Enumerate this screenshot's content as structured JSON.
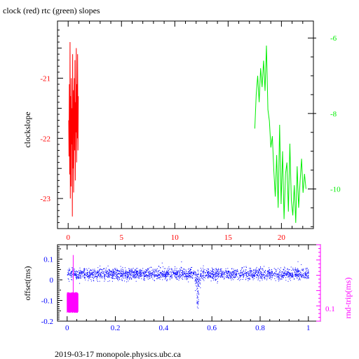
{
  "colors": {
    "clock": "#ff0000",
    "rtc": "#00ee00",
    "offset": "#0000ff",
    "rndtrip": "#ff00ff",
    "frame": "#000000"
  },
  "chart_data": [
    {
      "type": "line",
      "title": "clock (red) rtc (green) slopes",
      "xlabel": "",
      "ylabel": "clockslope",
      "xlim": [
        -1,
        23
      ],
      "ylim": [
        -23.5,
        -20.05
      ],
      "x_ticks": [
        "0",
        "5",
        "10",
        "15",
        "20"
      ],
      "y_ticks": [
        "-21",
        "-22",
        "-23"
      ],
      "right_axis": {
        "ylim": [
          -11.05,
          -5.55
        ],
        "ticks": [
          "-6",
          "-8",
          "-10"
        ],
        "label": ""
      },
      "series": [
        {
          "name": "clock",
          "axis": "left",
          "x_range": [
            0.05,
            0.95
          ],
          "values": [
            -21.7,
            -22.3,
            -21.1,
            -22.6,
            -20.4,
            -23.0,
            -21.3,
            -22.8,
            -21.0,
            -22.1,
            -21.5,
            -23.3,
            -20.6,
            -22.5,
            -21.2,
            -22.9,
            -21.6,
            -21.0,
            -22.2,
            -20.7,
            -22.7,
            -21.4,
            -21.9,
            -20.5,
            -22.4,
            -21.1,
            -22.0,
            -20.6,
            -22.2,
            -21.3
          ]
        },
        {
          "name": "rtc",
          "axis": "right",
          "x_range": [
            17.5,
            22.3
          ],
          "values": [
            -8.4,
            -7.5,
            -7.0,
            -7.7,
            -6.8,
            -7.3,
            -6.6,
            -7.4,
            -6.2,
            -7.9,
            -8.2,
            -8.9,
            -8.6,
            -9.5,
            -10.2,
            -9.1,
            -10.5,
            -8.3,
            -10.4,
            -9.0,
            -10.8,
            -9.6,
            -9.3,
            -10.6,
            -8.8,
            -10.3,
            -10.7,
            -9.9,
            -10.9,
            -9.4,
            -10.5,
            -9.8,
            -9.2,
            -10.1,
            -9.6,
            -10.0
          ]
        }
      ]
    },
    {
      "type": "scatter",
      "title": "",
      "xlabel": "",
      "ylabel": "offset(ms)",
      "xlim": [
        -0.04,
        1.05
      ],
      "ylim": [
        -0.2,
        0.17
      ],
      "x_ticks": [
        "0",
        "0.2",
        "0.4",
        "0.6",
        "0.8",
        "1"
      ],
      "y_ticks": [
        "0.1",
        "0",
        "-0.1",
        "-0.2"
      ],
      "right_axis": {
        "label": "rnd-trip(ms)",
        "ticks": [
          "0.1"
        ]
      },
      "series": [
        {
          "name": "offset",
          "x_range": [
            0,
            1
          ],
          "center": 0.03,
          "spread": 0.02,
          "dip_at": 0.54,
          "dip_min": -0.16
        },
        {
          "name": "rnd-trip",
          "x_range": [
            0,
            0.045
          ],
          "band": [
            -0.065,
            -0.155
          ],
          "spike": 0.12
        }
      ]
    }
  ],
  "footer": "2019-03-17  monopole.physics.ubc.ca"
}
